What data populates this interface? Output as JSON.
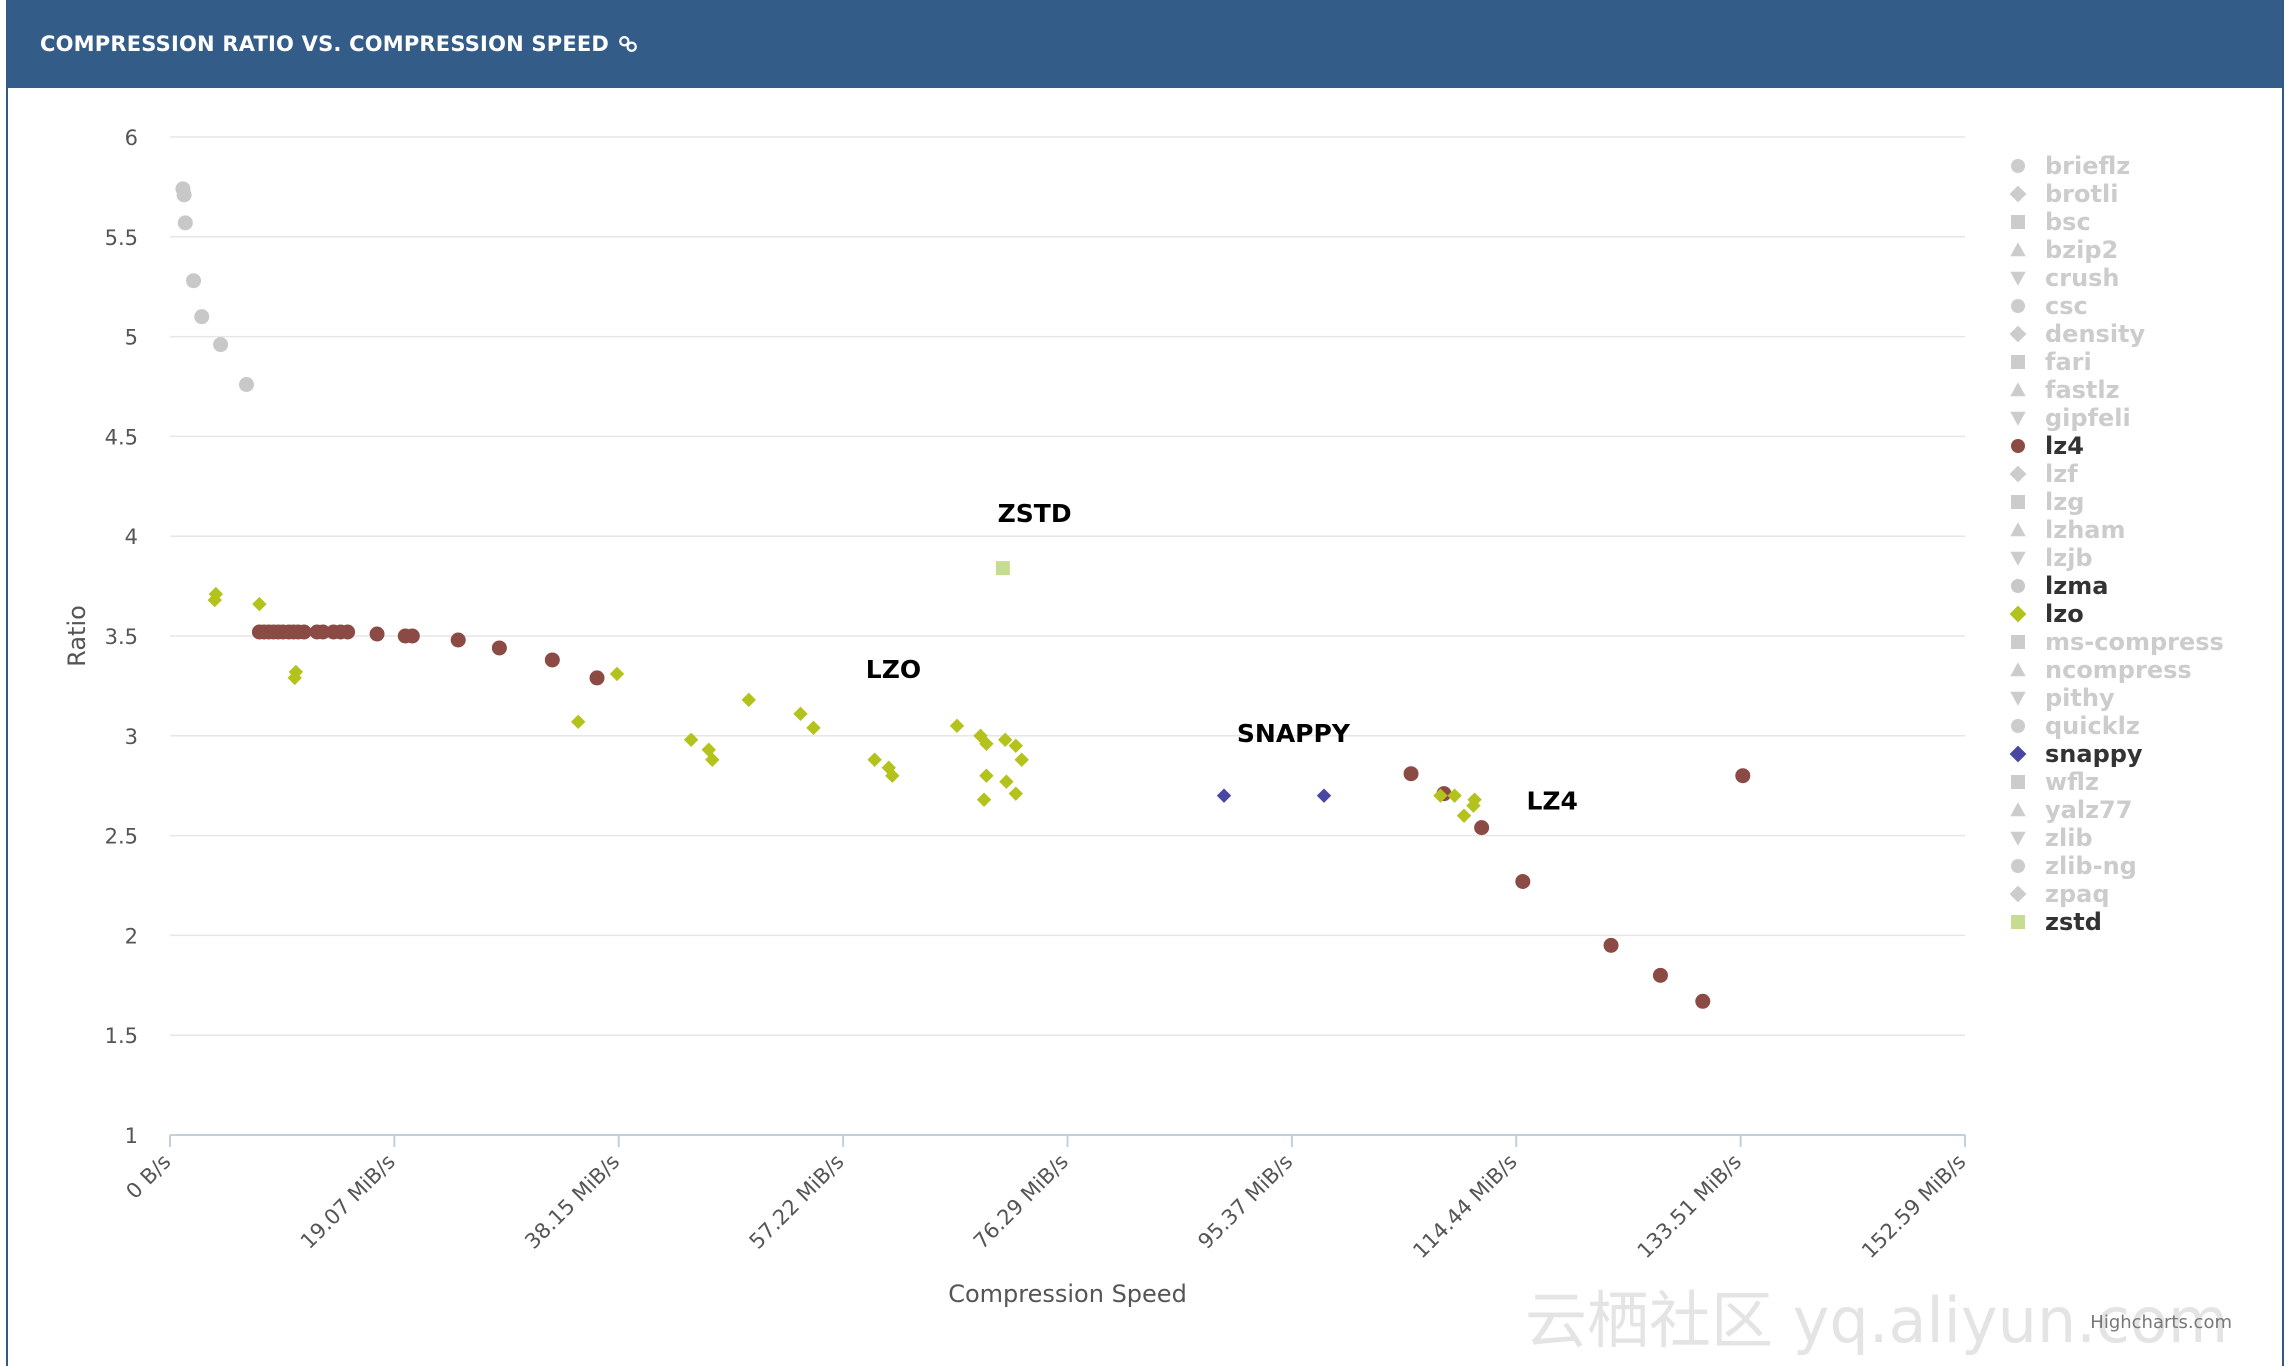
{
  "header": {
    "title": "COMPRESSION RATIO VS. COMPRESSION SPEED",
    "link_icon": "link-icon"
  },
  "colors": {
    "header_bg": "#335d88",
    "inactive": "#cccccc",
    "lz4": "#8b4a43",
    "lzo": "#b4c21c",
    "snappy": "#4a47a3",
    "zstd": "#c6dc91",
    "lzma": "#c8c8c8"
  },
  "chart_data": {
    "type": "scatter",
    "title": "",
    "xlabel": "Compression Speed",
    "ylabel": "Ratio",
    "xlim": [
      0,
      152.59
    ],
    "ylim": [
      1,
      6
    ],
    "x_ticks": [
      "0 B/s",
      "19.07 MiB/s",
      "38.15 MiB/s",
      "57.22 MiB/s",
      "76.29 MiB/s",
      "95.37 MiB/s",
      "114.44 MiB/s",
      "133.51 MiB/s",
      "152.59 MiB/s"
    ],
    "y_ticks": [
      "1",
      "1.5",
      "2",
      "2.5",
      "3",
      "3.5",
      "4",
      "4.5",
      "5",
      "5.5",
      "6"
    ],
    "grid": true,
    "legend_position": "right",
    "credit": "Highcharts.com",
    "annotations": [
      {
        "text": "ZSTD",
        "x": 73.5,
        "y": 4.07
      },
      {
        "text": "LZO",
        "x": 61.5,
        "y": 3.29
      },
      {
        "text": "SNAPPY",
        "x": 95.5,
        "y": 2.97
      },
      {
        "text": "LZ4",
        "x": 117.5,
        "y": 2.63
      }
    ],
    "series": [
      {
        "name": "brieflz",
        "symbol": "circle",
        "active": false,
        "points": []
      },
      {
        "name": "brotli",
        "symbol": "diamond",
        "active": false,
        "points": []
      },
      {
        "name": "bsc",
        "symbol": "square",
        "active": false,
        "points": []
      },
      {
        "name": "bzip2",
        "symbol": "triangle",
        "active": false,
        "points": []
      },
      {
        "name": "crush",
        "symbol": "triangle-down",
        "active": false,
        "points": []
      },
      {
        "name": "csc",
        "symbol": "circle",
        "active": false,
        "points": []
      },
      {
        "name": "density",
        "symbol": "diamond",
        "active": false,
        "points": []
      },
      {
        "name": "fari",
        "symbol": "square",
        "active": false,
        "points": []
      },
      {
        "name": "fastlz",
        "symbol": "triangle",
        "active": false,
        "points": []
      },
      {
        "name": "gipfeli",
        "symbol": "triangle-down",
        "active": false,
        "points": []
      },
      {
        "name": "lz4",
        "symbol": "circle",
        "active": true,
        "color": "#8b4a43",
        "points": [
          [
            7.6,
            3.52
          ],
          [
            8.0,
            3.52
          ],
          [
            8.4,
            3.52
          ],
          [
            8.8,
            3.52
          ],
          [
            9.2,
            3.52
          ],
          [
            9.6,
            3.52
          ],
          [
            10.1,
            3.52
          ],
          [
            10.5,
            3.52
          ],
          [
            10.9,
            3.52
          ],
          [
            11.4,
            3.52
          ],
          [
            12.5,
            3.52
          ],
          [
            13.0,
            3.52
          ],
          [
            13.9,
            3.52
          ],
          [
            14.5,
            3.52
          ],
          [
            15.1,
            3.52
          ],
          [
            17.6,
            3.51
          ],
          [
            20.0,
            3.5
          ],
          [
            20.6,
            3.5
          ],
          [
            24.5,
            3.48
          ],
          [
            28.0,
            3.44
          ],
          [
            32.5,
            3.38
          ],
          [
            36.3,
            3.29
          ],
          [
            105.5,
            2.81
          ],
          [
            108.3,
            2.71
          ],
          [
            111.5,
            2.54
          ],
          [
            115.0,
            2.27
          ],
          [
            122.5,
            1.95
          ],
          [
            126.7,
            1.8
          ],
          [
            130.3,
            1.67
          ],
          [
            133.7,
            2.8
          ]
        ]
      },
      {
        "name": "lzf",
        "symbol": "diamond",
        "active": false,
        "points": []
      },
      {
        "name": "lzg",
        "symbol": "square",
        "active": false,
        "points": []
      },
      {
        "name": "lzham",
        "symbol": "triangle",
        "active": false,
        "points": []
      },
      {
        "name": "lzjb",
        "symbol": "triangle-down",
        "active": false,
        "points": []
      },
      {
        "name": "lzma",
        "symbol": "circle",
        "active": true,
        "color": "#c8c8c8",
        "points": [
          [
            1.1,
            5.74
          ],
          [
            1.2,
            5.71
          ],
          [
            1.3,
            5.57
          ],
          [
            2.0,
            5.28
          ],
          [
            2.7,
            5.1
          ],
          [
            4.3,
            4.96
          ],
          [
            6.5,
            4.76
          ]
        ]
      },
      {
        "name": "lzo",
        "symbol": "diamond",
        "active": true,
        "color": "#b4c21c",
        "points": [
          [
            3.9,
            3.71
          ],
          [
            3.8,
            3.68
          ],
          [
            7.6,
            3.66
          ],
          [
            10.7,
            3.32
          ],
          [
            10.6,
            3.29
          ],
          [
            38.0,
            3.31
          ],
          [
            34.7,
            3.07
          ],
          [
            49.2,
            3.18
          ],
          [
            44.3,
            2.98
          ],
          [
            45.8,
            2.93
          ],
          [
            46.1,
            2.88
          ],
          [
            53.6,
            3.11
          ],
          [
            54.7,
            3.04
          ],
          [
            59.9,
            2.88
          ],
          [
            61.1,
            2.84
          ],
          [
            61.4,
            2.8
          ],
          [
            66.9,
            3.05
          ],
          [
            68.9,
            3.0
          ],
          [
            69.4,
            2.96
          ],
          [
            71.0,
            2.98
          ],
          [
            71.9,
            2.95
          ],
          [
            72.4,
            2.88
          ],
          [
            69.4,
            2.8
          ],
          [
            71.1,
            2.77
          ],
          [
            71.9,
            2.71
          ],
          [
            69.2,
            2.68
          ],
          [
            108.0,
            2.7
          ],
          [
            109.2,
            2.7
          ],
          [
            110.9,
            2.68
          ],
          [
            110.8,
            2.65
          ],
          [
            110.0,
            2.6
          ]
        ]
      },
      {
        "name": "ms-compress",
        "symbol": "square",
        "active": false,
        "points": []
      },
      {
        "name": "ncompress",
        "symbol": "triangle",
        "active": false,
        "points": []
      },
      {
        "name": "pithy",
        "symbol": "triangle-down",
        "active": false,
        "points": []
      },
      {
        "name": "quicklz",
        "symbol": "circle",
        "active": false,
        "points": []
      },
      {
        "name": "snappy",
        "symbol": "diamond",
        "active": true,
        "color": "#4a47a3",
        "points": [
          [
            89.6,
            2.7
          ],
          [
            98.1,
            2.7
          ]
        ]
      },
      {
        "name": "wflz",
        "symbol": "square",
        "active": false,
        "points": []
      },
      {
        "name": "yalz77",
        "symbol": "triangle",
        "active": false,
        "points": []
      },
      {
        "name": "zlib",
        "symbol": "triangle-down",
        "active": false,
        "points": []
      },
      {
        "name": "zlib-ng",
        "symbol": "circle",
        "active": false,
        "points": []
      },
      {
        "name": "zpaq",
        "symbol": "diamond",
        "active": false,
        "points": []
      },
      {
        "name": "zstd",
        "symbol": "square",
        "active": true,
        "color": "#c6dc91",
        "points": [
          [
            70.8,
            3.84
          ]
        ]
      }
    ]
  },
  "watermark": "云栖社区 yq.aliyun.com"
}
